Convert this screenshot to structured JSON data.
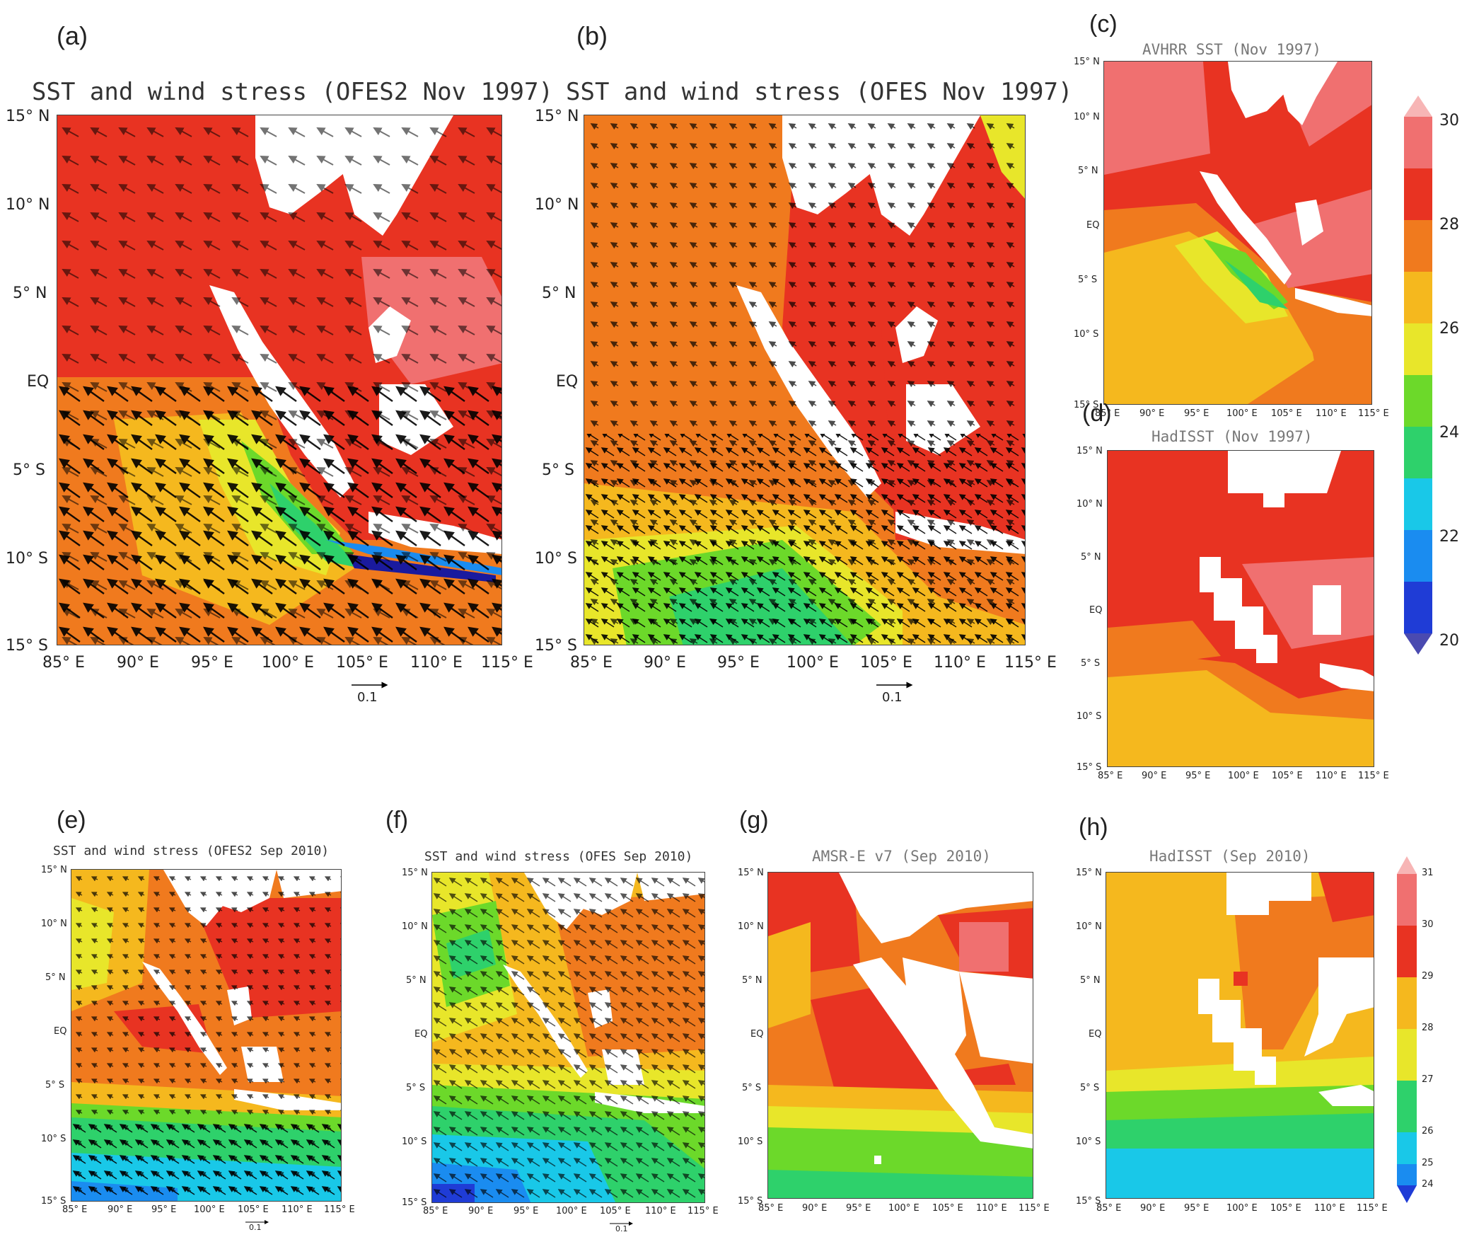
{
  "colors": {
    "c20": "#1a1a9e",
    "c21": "#1f3cd6",
    "c22": "#1a8cf0",
    "c23": "#19c8e8",
    "c24": "#2ed16b",
    "c25": "#6cd92a",
    "c26": "#e8e62a",
    "c27": "#f5b81e",
    "c28": "#f07a1e",
    "c29": "#e83322",
    "c30": "#f07070",
    "land": "#ffffff"
  },
  "panels": {
    "a": {
      "label": "(a)",
      "title": "SST and wind stress (OFES2 Nov 1997)",
      "scale": "0.1"
    },
    "b": {
      "label": "(b)",
      "title": "SST and wind stress (OFES Nov 1997)",
      "scale": "0.1"
    },
    "c": {
      "label": "(c)",
      "title": "AVHRR SST (Nov 1997)"
    },
    "d": {
      "label": "(d)",
      "title": "HadISST (Nov 1997)"
    },
    "e": {
      "label": "(e)",
      "title": "SST and wind stress (OFES2 Sep 2010)",
      "scale": "0.1"
    },
    "f": {
      "label": "(f)",
      "title": "SST and wind stress (OFES Sep 2010)",
      "scale": "0.1"
    },
    "g": {
      "label": "(g)",
      "title": "AMSR-E v7 (Sep 2010)"
    },
    "h": {
      "label": "(h)",
      "title": "HadISST (Sep 2010)"
    }
  },
  "lat_ticks": [
    "15° N",
    "10° N",
    "5° N",
    "EQ",
    "5° S",
    "10° S",
    "15° S"
  ],
  "lon_ticks": [
    "85° E",
    "90° E",
    "95° E",
    "100° E",
    "105° E",
    "110° E",
    "115° E"
  ],
  "colorbar_1997": {
    "labels": [
      "30",
      "28",
      "26",
      "24",
      "22",
      "20"
    ]
  },
  "colorbar_2010": {
    "labels": [
      "31",
      "30",
      "29",
      "28",
      "27",
      "26",
      "25",
      "24"
    ]
  }
}
